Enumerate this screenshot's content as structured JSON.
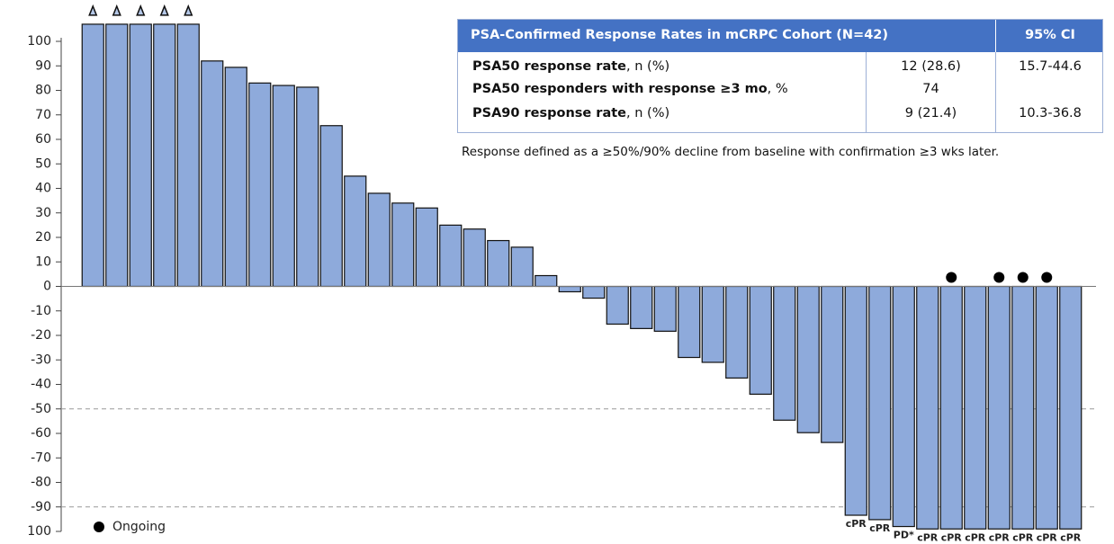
{
  "chart_data": {
    "type": "bar",
    "values": [
      107,
      107,
      107,
      107,
      107,
      92,
      89.4,
      83,
      82,
      81.3,
      65.6,
      45,
      38,
      34,
      32,
      25,
      23.4,
      18.7,
      16,
      4.4,
      -2.2,
      -4.8,
      -15.4,
      -17.2,
      -18.3,
      -29,
      -31,
      -37.4,
      -44,
      -54.6,
      -59.7,
      -63.7,
      -93.4,
      -95.2,
      -98,
      -99,
      -99,
      -99,
      -99,
      -99,
      -99,
      -99
    ],
    "color": "#8eaadb",
    "bar_labels": [
      null,
      null,
      null,
      null,
      null,
      null,
      null,
      null,
      null,
      null,
      null,
      null,
      null,
      null,
      null,
      null,
      null,
      null,
      null,
      null,
      null,
      null,
      null,
      null,
      null,
      null,
      null,
      null,
      null,
      null,
      null,
      null,
      "cPR",
      "cPR",
      "PD*",
      "cPR",
      "cPR",
      "cPR",
      "cPR",
      "cPR",
      "cPR",
      "cPR"
    ],
    "bar_label_colors": {
      "cPR": "#000000",
      "PD*": "#c55a11"
    },
    "capped": [
      0,
      1,
      2,
      3,
      4
    ],
    "ongoing": [
      36,
      38,
      39,
      40
    ],
    "legend": "Ongoing",
    "ylim": [
      -100,
      100
    ],
    "yticks": [
      100,
      90,
      80,
      70,
      60,
      50,
      40,
      30,
      20,
      10,
      0,
      -10,
      -20,
      -30,
      -40,
      -50,
      -60,
      -70,
      -80,
      -90,
      {
        "value": -100,
        "label": "100"
      }
    ],
    "reference_lines": [
      -50,
      -90
    ],
    "table": {
      "header": [
        "PSA-Confirmed Response Rates in mCRPC Cohort (N=42)",
        "95% CI"
      ],
      "rows": [
        [
          {
            "bold": "PSA50 response rate",
            "rest": ", n (%)"
          },
          "12 (28.6)",
          "15.7-44.6"
        ],
        [
          {
            "bold": "PSA50 responders with response ≥3 mo",
            "rest": ", %"
          },
          "74",
          null
        ],
        [
          {
            "bold": "PSA90 response rate",
            "rest": ", n (%)"
          },
          "9 (21.4)",
          "10.3-36.8"
        ]
      ],
      "footnote": "Response defined as a ≥50%/90% decline from baseline with confirmation ≥3 wks later."
    }
  }
}
